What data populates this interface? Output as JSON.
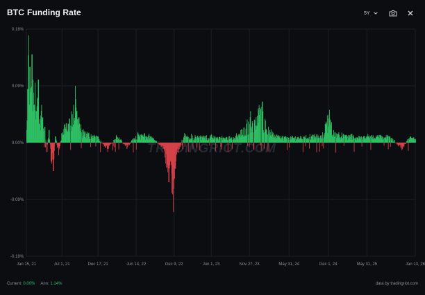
{
  "header": {
    "title_part1": "BTC",
    "title_part2": "Funding Rate",
    "period": "5Y"
  },
  "icons": {
    "period_chevron": "chevron-down-icon",
    "camera": "camera-icon",
    "close": "close-icon"
  },
  "watermark": "TRADINGRIOT.COM",
  "footer": {
    "current_label": "Current:",
    "current_value": "0.00%",
    "ann_label": "Ann:",
    "ann_value": "1.14%",
    "credit": "data by tradingriot.com"
  },
  "colors": {
    "background": "#0b0d11",
    "positive": "#2fbf63",
    "negative": "#d6424a",
    "grid": "#1b1f26",
    "axis_text": "#8b9098"
  },
  "chart_data": {
    "type": "bar",
    "title": "BTC Funding Rate",
    "y_unit": "%",
    "ylim": [
      -0.18,
      0.18
    ],
    "y_ticks": [
      "0.18%",
      "0.09%",
      "0.00%",
      "-0.09%",
      "-0.18%"
    ],
    "y_tick_values": [
      0.18,
      0.09,
      0.0,
      -0.09,
      -0.18
    ],
    "x_tick_labels": [
      "Jan 15, 21",
      "Jul 1, 21",
      "Dec 17, 21",
      "Jun 14, 22",
      "Dec 9, 22",
      "Jun 1, 23",
      "Nov 27, 23",
      "May 31, 24",
      "Dec 1, 24",
      "May 31, 25",
      "Jan 13, 26"
    ],
    "x_tick_days": [
      0,
      167,
      336,
      515,
      693,
      867,
      1046,
      1232,
      1416,
      1597,
      1824
    ],
    "x_range_days": [
      0,
      1824
    ],
    "grid": true,
    "legend": "none",
    "series_approx": [
      {
        "day": 0,
        "v": 0.02
      },
      {
        "day": 5,
        "v": 0.085
      },
      {
        "day": 10,
        "v": 0.17
      },
      {
        "day": 15,
        "v": 0.12
      },
      {
        "day": 20,
        "v": 0.08
      },
      {
        "day": 25,
        "v": 0.14
      },
      {
        "day": 30,
        "v": 0.1
      },
      {
        "day": 35,
        "v": 0.06
      },
      {
        "day": 40,
        "v": 0.095
      },
      {
        "day": 45,
        "v": 0.05
      },
      {
        "day": 50,
        "v": 0.07
      },
      {
        "day": 55,
        "v": 0.1
      },
      {
        "day": 60,
        "v": 0.03
      },
      {
        "day": 70,
        "v": 0.06
      },
      {
        "day": 75,
        "v": 0.04
      },
      {
        "day": 85,
        "v": 0.025
      },
      {
        "day": 95,
        "v": -0.015
      },
      {
        "day": 105,
        "v": 0.02
      },
      {
        "day": 115,
        "v": -0.03
      },
      {
        "day": 125,
        "v": -0.045
      },
      {
        "day": 135,
        "v": 0.01
      },
      {
        "day": 150,
        "v": -0.02
      },
      {
        "day": 165,
        "v": 0.015
      },
      {
        "day": 180,
        "v": 0.03
      },
      {
        "day": 195,
        "v": 0.03
      },
      {
        "day": 210,
        "v": 0.05
      },
      {
        "day": 220,
        "v": 0.06
      },
      {
        "day": 228,
        "v": 0.09
      },
      {
        "day": 235,
        "v": 0.05
      },
      {
        "day": 245,
        "v": 0.04
      },
      {
        "day": 260,
        "v": 0.02
      },
      {
        "day": 290,
        "v": 0.015
      },
      {
        "day": 330,
        "v": 0.01
      },
      {
        "day": 380,
        "v": -0.015
      },
      {
        "day": 420,
        "v": 0.012
      },
      {
        "day": 470,
        "v": -0.01
      },
      {
        "day": 520,
        "v": 0.015
      },
      {
        "day": 580,
        "v": 0.01
      },
      {
        "day": 640,
        "v": -0.01
      },
      {
        "day": 688,
        "v": -0.11
      },
      {
        "day": 700,
        "v": -0.03
      },
      {
        "day": 740,
        "v": 0.015
      },
      {
        "day": 800,
        "v": 0.01
      },
      {
        "day": 860,
        "v": 0.01
      },
      {
        "day": 920,
        "v": 0.008
      },
      {
        "day": 980,
        "v": 0.01
      },
      {
        "day": 1010,
        "v": 0.02
      },
      {
        "day": 1030,
        "v": 0.03
      },
      {
        "day": 1050,
        "v": 0.05
      },
      {
        "day": 1070,
        "v": 0.035
      },
      {
        "day": 1090,
        "v": 0.06
      },
      {
        "day": 1105,
        "v": 0.065
      },
      {
        "day": 1120,
        "v": 0.035
      },
      {
        "day": 1140,
        "v": 0.02
      },
      {
        "day": 1180,
        "v": 0.01
      },
      {
        "day": 1230,
        "v": 0.008
      },
      {
        "day": 1300,
        "v": 0.01
      },
      {
        "day": 1380,
        "v": 0.012
      },
      {
        "day": 1400,
        "v": 0.03
      },
      {
        "day": 1420,
        "v": 0.052
      },
      {
        "day": 1440,
        "v": 0.02
      },
      {
        "day": 1500,
        "v": 0.012
      },
      {
        "day": 1560,
        "v": 0.01
      },
      {
        "day": 1620,
        "v": 0.012
      },
      {
        "day": 1700,
        "v": 0.01
      },
      {
        "day": 1760,
        "v": -0.012
      },
      {
        "day": 1800,
        "v": 0.01
      },
      {
        "day": 1824,
        "v": 0.006
      }
    ]
  }
}
